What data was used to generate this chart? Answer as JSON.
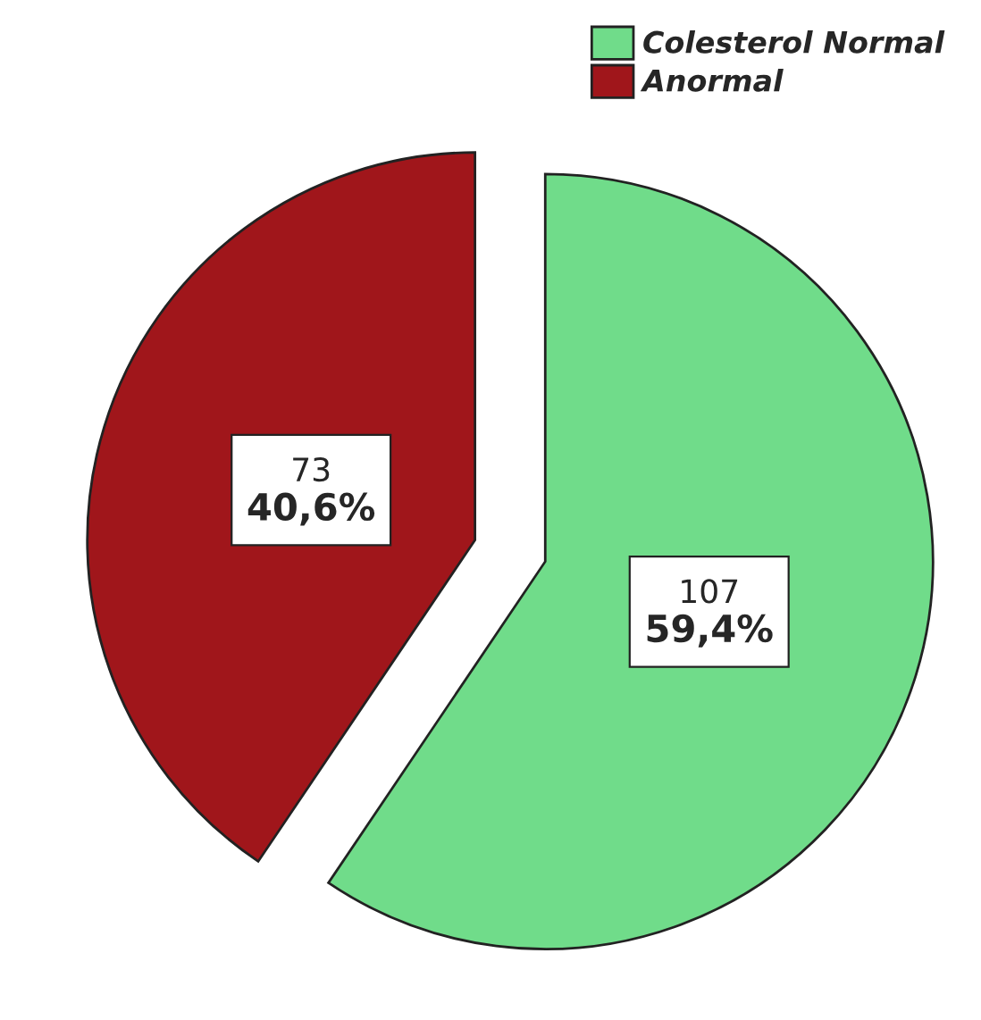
{
  "chart_data": {
    "type": "pie",
    "categories": [
      "Colesterol Normal",
      "Anormal"
    ],
    "values": [
      107,
      73
    ],
    "colors": [
      "#70dc8a",
      "#a0161b"
    ],
    "value_labels": [
      "107\n59,4%",
      "73\n40,6%"
    ],
    "legend": "top right"
  }
}
